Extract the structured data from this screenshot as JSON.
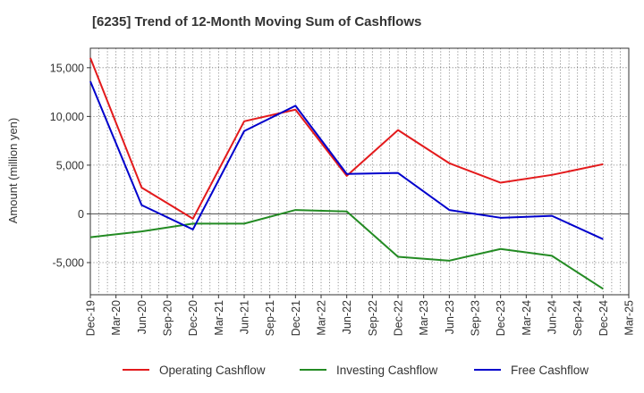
{
  "chart_data": {
    "type": "line",
    "title": "[6235]  Trend of 12-Month Moving Sum of Cashflows",
    "xlabel": "",
    "ylabel": "Amount (million yen)",
    "ylim": [
      -8300,
      17000
    ],
    "yticks": [
      15000,
      10000,
      5000,
      0,
      -5000
    ],
    "ytick_labels": [
      "15,000",
      "10,000",
      "5,000",
      "0",
      "-5,000"
    ],
    "x_ticks": [
      "Dec-19",
      "Mar-20",
      "Jun-20",
      "Sep-20",
      "Dec-20",
      "Mar-21",
      "Jun-21",
      "Sep-21",
      "Dec-21",
      "Mar-22",
      "Jun-22",
      "Sep-22",
      "Dec-22",
      "Mar-23",
      "Jun-23",
      "Sep-23",
      "Dec-23",
      "Mar-24",
      "Jun-24",
      "Sep-24",
      "Dec-24",
      "Mar-25"
    ],
    "grid": true,
    "legend_position": "bottom",
    "series": [
      {
        "name": "Operating Cashflow",
        "color": "#e31a1c",
        "points": [
          {
            "x": "Dec-19",
            "y": 16000
          },
          {
            "x": "Jun-20",
            "y": 2700
          },
          {
            "x": "Dec-20",
            "y": -500
          },
          {
            "x": "Jun-21",
            "y": 9500
          },
          {
            "x": "Dec-21",
            "y": 10700
          },
          {
            "x": "Jun-22",
            "y": 3900
          },
          {
            "x": "Dec-22",
            "y": 8600
          },
          {
            "x": "Jun-23",
            "y": 5200
          },
          {
            "x": "Dec-23",
            "y": 3200
          },
          {
            "x": "Jun-24",
            "y": 4000
          },
          {
            "x": "Dec-24",
            "y": 5100
          }
        ]
      },
      {
        "name": "Investing Cashflow",
        "color": "#238b23",
        "points": [
          {
            "x": "Dec-19",
            "y": -2400
          },
          {
            "x": "Jun-20",
            "y": -1800
          },
          {
            "x": "Dec-20",
            "y": -1000
          },
          {
            "x": "Jun-21",
            "y": -1000
          },
          {
            "x": "Dec-21",
            "y": 400
          },
          {
            "x": "Jun-22",
            "y": 250
          },
          {
            "x": "Dec-22",
            "y": -4400
          },
          {
            "x": "Jun-23",
            "y": -4800
          },
          {
            "x": "Dec-23",
            "y": -3600
          },
          {
            "x": "Jun-24",
            "y": -4300
          },
          {
            "x": "Dec-24",
            "y": -7700
          }
        ]
      },
      {
        "name": "Free Cashflow",
        "color": "#0000cc",
        "points": [
          {
            "x": "Dec-19",
            "y": 13600
          },
          {
            "x": "Jun-20",
            "y": 900
          },
          {
            "x": "Dec-20",
            "y": -1600
          },
          {
            "x": "Jun-21",
            "y": 8500
          },
          {
            "x": "Dec-21",
            "y": 11100
          },
          {
            "x": "Jun-22",
            "y": 4100
          },
          {
            "x": "Dec-22",
            "y": 4200
          },
          {
            "x": "Jun-23",
            "y": 400
          },
          {
            "x": "Dec-23",
            "y": -400
          },
          {
            "x": "Jun-24",
            "y": -200
          },
          {
            "x": "Dec-24",
            "y": -2600
          }
        ]
      }
    ]
  }
}
